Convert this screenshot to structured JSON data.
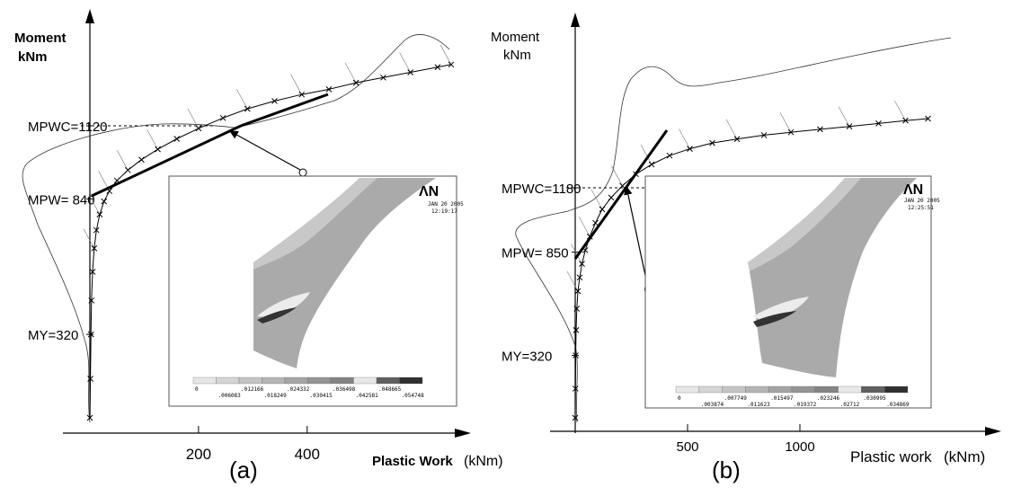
{
  "chart_data": [
    {
      "type": "line",
      "panel_label": "(a)",
      "ylabel": "Moment\nkNm",
      "xlabel": "Plastic Work",
      "xunit": "(kNm)",
      "x_ticks": [
        200,
        400
      ],
      "xlim": [
        0,
        680
      ],
      "ylim": [
        0,
        1380
      ],
      "annotations": [
        {
          "text": "MPWC=1120",
          "value": 1120
        },
        {
          "text": "MPW= 840",
          "value": 840
        },
        {
          "text": "MY=320",
          "value": 320
        }
      ],
      "series": [
        {
          "style": "line-with-x-markers",
          "x": [
            0,
            1,
            2,
            3,
            5,
            8,
            12,
            18,
            26,
            36,
            50,
            70,
            95,
            125,
            160,
            200,
            245,
            290,
            340,
            390,
            440,
            490,
            540,
            590,
            640,
            665
          ],
          "y": [
            0,
            150,
            320,
            450,
            560,
            650,
            720,
            780,
            830,
            870,
            910,
            950,
            990,
            1030,
            1070,
            1110,
            1150,
            1185,
            1215,
            1240,
            1260,
            1285,
            1305,
            1325,
            1345,
            1355
          ]
        }
      ],
      "inset": {
        "logo": "ΛN",
        "date": "JAN 20 2005",
        "time": "12:19:17",
        "scale_top": [
          "0",
          ".012166",
          ".024332",
          ".036498",
          ".048665"
        ],
        "scale_bottom": [
          ".006083",
          ".018249",
          ".030415",
          ".042581",
          ".054748"
        ]
      }
    },
    {
      "type": "line",
      "panel_label": "(b)",
      "ylabel": "Moment\nkNm",
      "xlabel": "Plastic work",
      "xunit": "(kNm)",
      "x_ticks": [
        500,
        1000
      ],
      "xlim": [
        0,
        1800
      ],
      "ylim": [
        0,
        1600
      ],
      "annotations": [
        {
          "text": "MPWC=1180",
          "value": 1180
        },
        {
          "text": "MPW= 850",
          "value": 850
        },
        {
          "text": "MY=320",
          "value": 320
        }
      ],
      "series": [
        {
          "style": "line-with-x-markers",
          "x": [
            0,
            1,
            2,
            4,
            7,
            12,
            20,
            30,
            45,
            65,
            90,
            120,
            160,
            210,
            270,
            340,
            420,
            510,
            610,
            720,
            840,
            960,
            1090,
            1220,
            1350,
            1470,
            1570
          ],
          "y": [
            0,
            150,
            320,
            450,
            560,
            650,
            720,
            790,
            860,
            930,
            1000,
            1070,
            1130,
            1190,
            1250,
            1300,
            1345,
            1380,
            1410,
            1430,
            1450,
            1465,
            1480,
            1495,
            1510,
            1525,
            1535
          ]
        }
      ],
      "inset": {
        "logo": "ΛN",
        "date": "JAN 20 2005",
        "time": "12:25:51",
        "scale_top": [
          "0",
          ".007749",
          ".015497",
          ".023246",
          ".030995"
        ],
        "scale_bottom": [
          ".003874",
          ".011623",
          ".019372",
          ".02712",
          ".034869"
        ]
      }
    }
  ]
}
